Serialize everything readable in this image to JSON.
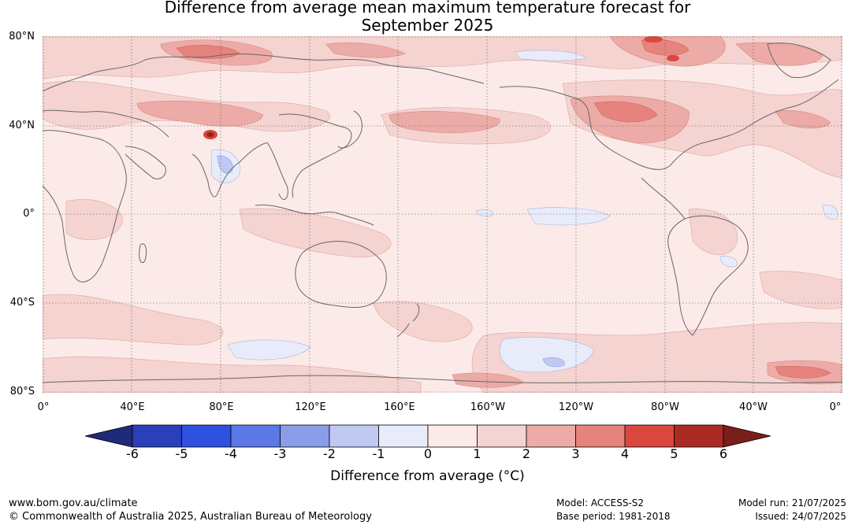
{
  "title_line1": "Difference from average mean maximum temperature forecast for",
  "title_line2": "September 2025",
  "map": {
    "lat_labels": [
      "80°N",
      "40°N",
      "0°",
      "40°S",
      "80°S"
    ],
    "lon_labels": [
      "0°",
      "40°E",
      "80°E",
      "120°E",
      "160°E",
      "160°W",
      "120°W",
      "80°W",
      "40°W",
      "0°"
    ]
  },
  "colorbar": {
    "ticks": [
      "-6",
      "-5",
      "-4",
      "-3",
      "-2",
      "-1",
      "0",
      "1",
      "2",
      "3",
      "4",
      "5",
      "6"
    ],
    "colors": [
      "#1e2b7a",
      "#2a3fb8",
      "#3050e0",
      "#5c78e6",
      "#8a9de9",
      "#c0c9f2",
      "#e8ecfa",
      "#fceae8",
      "#f5d3d0",
      "#ecaba6",
      "#e5837c",
      "#d9473d",
      "#a92b24",
      "#7a1e1a"
    ],
    "label": "Difference from average (°C)"
  },
  "footer": {
    "website": "www.bom.gov.au/climate",
    "copyright": "© Commonwealth of Australia 2025, Australian Bureau of Meteorology",
    "model": "Model: ACCESS-S2",
    "base_period": "Base period: 1981-2018",
    "model_run": "Model run: 21/07/2025",
    "issued": "Issued: 24/07/2025"
  }
}
